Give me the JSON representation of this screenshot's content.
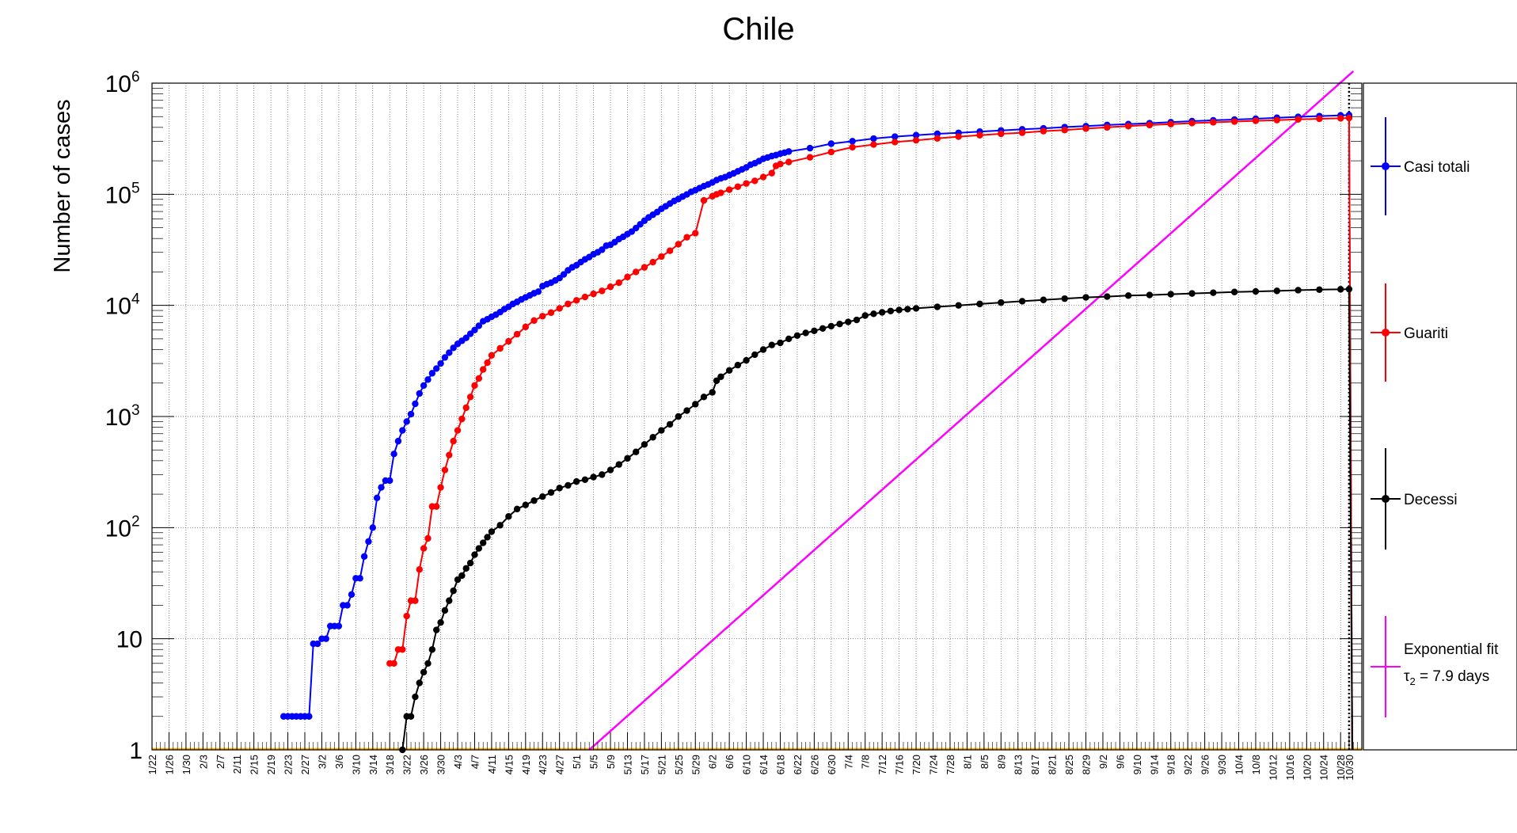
{
  "chart_data": {
    "type": "line",
    "title": "Chile",
    "ylabel": "Number of cases",
    "xlabel": "",
    "y_scale": "log",
    "ylim": [
      1,
      1000000
    ],
    "xlim_days": [
      0,
      285
    ],
    "grid": true,
    "legend_position": "right",
    "y_ticks": [
      {
        "value": 1,
        "label": "1"
      },
      {
        "value": 10,
        "label": "10"
      },
      {
        "value": 100,
        "label": "10",
        "exp": "2"
      },
      {
        "value": 1000,
        "label": "10",
        "exp": "3"
      },
      {
        "value": 10000,
        "label": "10",
        "exp": "4"
      },
      {
        "value": 100000,
        "label": "10",
        "exp": "5"
      },
      {
        "value": 1000000,
        "label": "10",
        "exp": "6"
      }
    ],
    "x_tick_labels": [
      "1/22",
      "1/26",
      "1/30",
      "2/3",
      "2/7",
      "2/11",
      "2/15",
      "2/19",
      "2/23",
      "2/27",
      "3/2",
      "3/6",
      "3/10",
      "3/14",
      "3/18",
      "3/22",
      "3/26",
      "3/30",
      "4/3",
      "4/7",
      "4/11",
      "4/15",
      "4/19",
      "4/23",
      "4/27",
      "5/1",
      "5/5",
      "5/9",
      "5/13",
      "5/17",
      "5/21",
      "5/25",
      "5/29",
      "6/2",
      "6/6",
      "6/10",
      "6/14",
      "6/18",
      "6/22",
      "6/26",
      "6/30",
      "7/4",
      "7/8",
      "7/12",
      "7/16",
      "7/20",
      "7/24",
      "7/28",
      "8/1",
      "8/5",
      "8/9",
      "8/13",
      "8/17",
      "8/21",
      "8/25",
      "8/29",
      "9/2",
      "9/6",
      "9/10",
      "9/14",
      "9/18",
      "9/22",
      "9/26",
      "9/30",
      "10/4",
      "10/8",
      "10/12",
      "10/16",
      "10/20",
      "10/24",
      "10/28",
      "10/30"
    ],
    "x_tick_days": [
      0,
      4,
      8,
      12,
      16,
      20,
      24,
      28,
      32,
      36,
      40,
      44,
      48,
      52,
      56,
      60,
      64,
      68,
      72,
      76,
      80,
      84,
      88,
      92,
      96,
      100,
      104,
      108,
      112,
      116,
      120,
      124,
      128,
      132,
      136,
      140,
      144,
      148,
      152,
      156,
      160,
      164,
      168,
      172,
      176,
      180,
      184,
      188,
      192,
      196,
      200,
      204,
      208,
      212,
      216,
      220,
      224,
      228,
      232,
      236,
      240,
      244,
      248,
      252,
      256,
      260,
      264,
      268,
      272,
      276,
      280,
      282
    ],
    "series": [
      {
        "name": "Casi totali",
        "color": "#0000ff",
        "x": [
          31,
          32,
          33,
          34,
          35,
          36,
          37,
          38,
          39,
          40,
          41,
          42,
          43,
          44,
          45,
          46,
          47,
          48,
          49,
          50,
          51,
          52,
          53,
          54,
          55,
          56,
          57,
          58,
          59,
          60,
          61,
          62,
          63,
          64,
          65,
          66,
          67,
          68,
          69,
          70,
          71,
          72,
          73,
          74,
          75,
          76,
          77,
          78,
          79,
          80,
          81,
          82,
          83,
          84,
          85,
          86,
          87,
          88,
          89,
          90,
          91,
          92,
          93,
          94,
          95,
          96,
          97,
          98,
          99,
          100,
          101,
          102,
          103,
          104,
          105,
          106,
          107,
          108,
          109,
          110,
          111,
          112,
          113,
          114,
          115,
          116,
          117,
          118,
          119,
          120,
          121,
          122,
          123,
          124,
          125,
          126,
          127,
          128,
          129,
          130,
          131,
          132,
          133,
          134,
          135,
          136,
          137,
          138,
          139,
          140,
          141,
          142,
          143,
          144,
          145,
          146,
          147,
          148,
          149,
          150,
          155,
          160,
          165,
          170,
          175,
          180,
          185,
          190,
          195,
          200,
          205,
          210,
          215,
          220,
          225,
          230,
          235,
          240,
          245,
          250,
          255,
          260,
          265,
          270,
          275,
          280,
          282
        ],
        "y": [
          2,
          2,
          2,
          2,
          2,
          2,
          2,
          9,
          9,
          10,
          10,
          13,
          13,
          13,
          20,
          20,
          25,
          35,
          35,
          55,
          75,
          100,
          185,
          230,
          265,
          265,
          460,
          600,
          750,
          900,
          1050,
          1300,
          1610,
          1900,
          2150,
          2450,
          2700,
          3000,
          3400,
          3750,
          4150,
          4500,
          4800,
          5100,
          5550,
          6000,
          6550,
          7200,
          7500,
          7900,
          8250,
          8700,
          9250,
          9700,
          10300,
          10750,
          11300,
          11800,
          12300,
          12850,
          13300,
          14900,
          15500,
          16000,
          16750,
          17600,
          19000,
          20650,
          22000,
          23000,
          24500,
          25950,
          27200,
          28850,
          30050,
          31700,
          34400,
          35100,
          37050,
          39500,
          41400,
          43800,
          46100,
          49600,
          53600,
          57800,
          61850,
          65400,
          69100,
          73950,
          77950,
          82300,
          86950,
          90600,
          95300,
          99700,
          105000,
          108700,
          113600,
          118300,
          122500,
          127700,
          134150,
          139000,
          142700,
          148450,
          154100,
          160850,
          167350,
          174300,
          184450,
          190000,
          198900,
          208500,
          214100,
          220600,
          225100,
          231400,
          236700,
          242350,
          260000,
          285000,
          300000,
          317000,
          330000,
          340000,
          350000,
          357000,
          366000,
          375000,
          384000,
          392000,
          402000,
          410000,
          420000,
          428000,
          436000,
          445000,
          455000,
          463000,
          470000,
          478000,
          488000,
          497000,
          505000,
          513000,
          516000
        ]
      },
      {
        "name": "Guariti",
        "color": "#ff0000",
        "x": [
          56,
          57,
          58,
          59,
          60,
          61,
          62,
          63,
          64,
          65,
          66,
          67,
          68,
          69,
          70,
          71,
          72,
          73,
          74,
          75,
          76,
          77,
          78,
          79,
          80,
          82,
          84,
          86,
          88,
          90,
          92,
          94,
          96,
          98,
          100,
          102,
          104,
          106,
          108,
          110,
          112,
          114,
          116,
          118,
          120,
          122,
          124,
          126,
          128,
          130,
          132,
          133,
          134,
          136,
          138,
          140,
          142,
          144,
          146,
          147,
          148,
          150,
          155,
          160,
          165,
          170,
          175,
          180,
          185,
          190,
          195,
          200,
          205,
          210,
          215,
          220,
          225,
          230,
          235,
          240,
          245,
          250,
          255,
          260,
          265,
          270,
          275,
          280,
          282
        ],
        "y": [
          6,
          6,
          8,
          8,
          16,
          22,
          22,
          42,
          65,
          80,
          155,
          155,
          230,
          330,
          450,
          600,
          750,
          950,
          1200,
          1500,
          1900,
          2200,
          2650,
          3050,
          3550,
          4100,
          4750,
          5500,
          6400,
          7300,
          8000,
          8600,
          9400,
          10300,
          11100,
          11900,
          12700,
          13500,
          14700,
          16000,
          18000,
          20000,
          22000,
          24500,
          27500,
          31000,
          35500,
          41000,
          44600,
          88000,
          96000,
          99900,
          103000,
          110000,
          117000,
          125000,
          132000,
          143000,
          155000,
          180000,
          187000,
          195000,
          215000,
          240000,
          265000,
          280000,
          295000,
          306000,
          318000,
          330000,
          340000,
          350000,
          358000,
          370000,
          378000,
          390000,
          400000,
          410000,
          420000,
          428000,
          437000,
          444000,
          451000,
          458000,
          465000,
          472000,
          478000,
          483000,
          486000
        ]
      },
      {
        "name": "Decessi",
        "color": "#000000",
        "x": [
          59,
          60,
          61,
          62,
          63,
          64,
          65,
          66,
          67,
          68,
          69,
          70,
          71,
          72,
          73,
          74,
          75,
          76,
          77,
          78,
          79,
          80,
          82,
          84,
          86,
          88,
          90,
          92,
          94,
          96,
          98,
          100,
          102,
          104,
          106,
          108,
          110,
          112,
          114,
          116,
          118,
          120,
          122,
          124,
          126,
          128,
          130,
          132,
          133,
          134,
          136,
          138,
          140,
          142,
          144,
          146,
          148,
          150,
          152,
          154,
          156,
          158,
          160,
          162,
          164,
          166,
          168,
          170,
          172,
          174,
          176,
          178,
          180,
          185,
          190,
          195,
          200,
          205,
          210,
          215,
          220,
          225,
          230,
          235,
          240,
          245,
          250,
          255,
          260,
          265,
          270,
          275,
          280,
          282
        ],
        "y": [
          1,
          2,
          2,
          3,
          4,
          5,
          6,
          8,
          12,
          14,
          18,
          22,
          27,
          34,
          37,
          43,
          48,
          57,
          65,
          73,
          82,
          92,
          105,
          126,
          147,
          160,
          175,
          190,
          207,
          227,
          240,
          260,
          270,
          285,
          300,
          330,
          370,
          420,
          480,
          560,
          650,
          750,
          850,
          1000,
          1130,
          1290,
          1500,
          1650,
          2100,
          2280,
          2600,
          2900,
          3200,
          3600,
          4000,
          4400,
          4600,
          5000,
          5350,
          5650,
          5900,
          6200,
          6500,
          6800,
          7100,
          7400,
          8100,
          8400,
          8650,
          8900,
          9100,
          9250,
          9400,
          9700,
          10000,
          10300,
          10600,
          10900,
          11200,
          11500,
          11800,
          12000,
          12250,
          12400,
          12600,
          12800,
          13000,
          13200,
          13350,
          13500,
          13700,
          13850,
          13950,
          14000
        ]
      },
      {
        "name": "Exponential fit",
        "color": "#ff00ff",
        "note": "τ2 = 7.9 days",
        "fit_range_days": [
          103,
          283
        ]
      }
    ],
    "legend": [
      {
        "name": "Casi totali",
        "color": "#0000ff"
      },
      {
        "name": "Guariti",
        "color": "#ff0000"
      },
      {
        "name": "Decessi",
        "color": "#000000"
      },
      {
        "name": "Exponential fit",
        "color": "#ff00ff",
        "sub": "τ",
        "sub_index": "2",
        "sub_rest": " = 7.9 days"
      }
    ],
    "vertical_marker_day": 282
  }
}
